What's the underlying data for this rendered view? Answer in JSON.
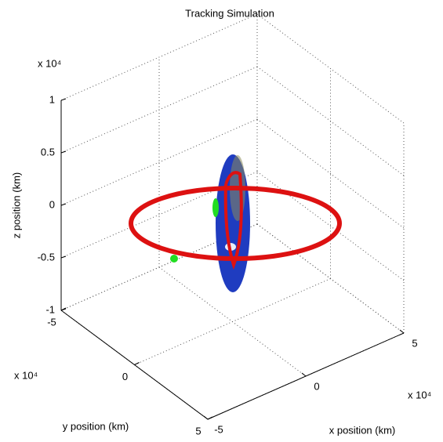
{
  "chart_data": {
    "type": "3d-box",
    "title": "Tracking Simulation",
    "xlabel": "x position (km)",
    "ylabel": "y position (km)",
    "zlabel": "z position (km)",
    "x_multiplier": "x 10⁴",
    "y_multiplier": "x 10⁴",
    "z_multiplier": "x 10⁴",
    "xlim": [
      -5,
      5
    ],
    "xticks": [
      -5,
      0,
      5
    ],
    "ylim": [
      -5,
      5
    ],
    "yticks": [
      -5,
      0,
      5
    ],
    "zlim": [
      -1,
      1
    ],
    "zticks": [
      -1,
      -0.5,
      0,
      0.5,
      1
    ],
    "grid": true
  }
}
